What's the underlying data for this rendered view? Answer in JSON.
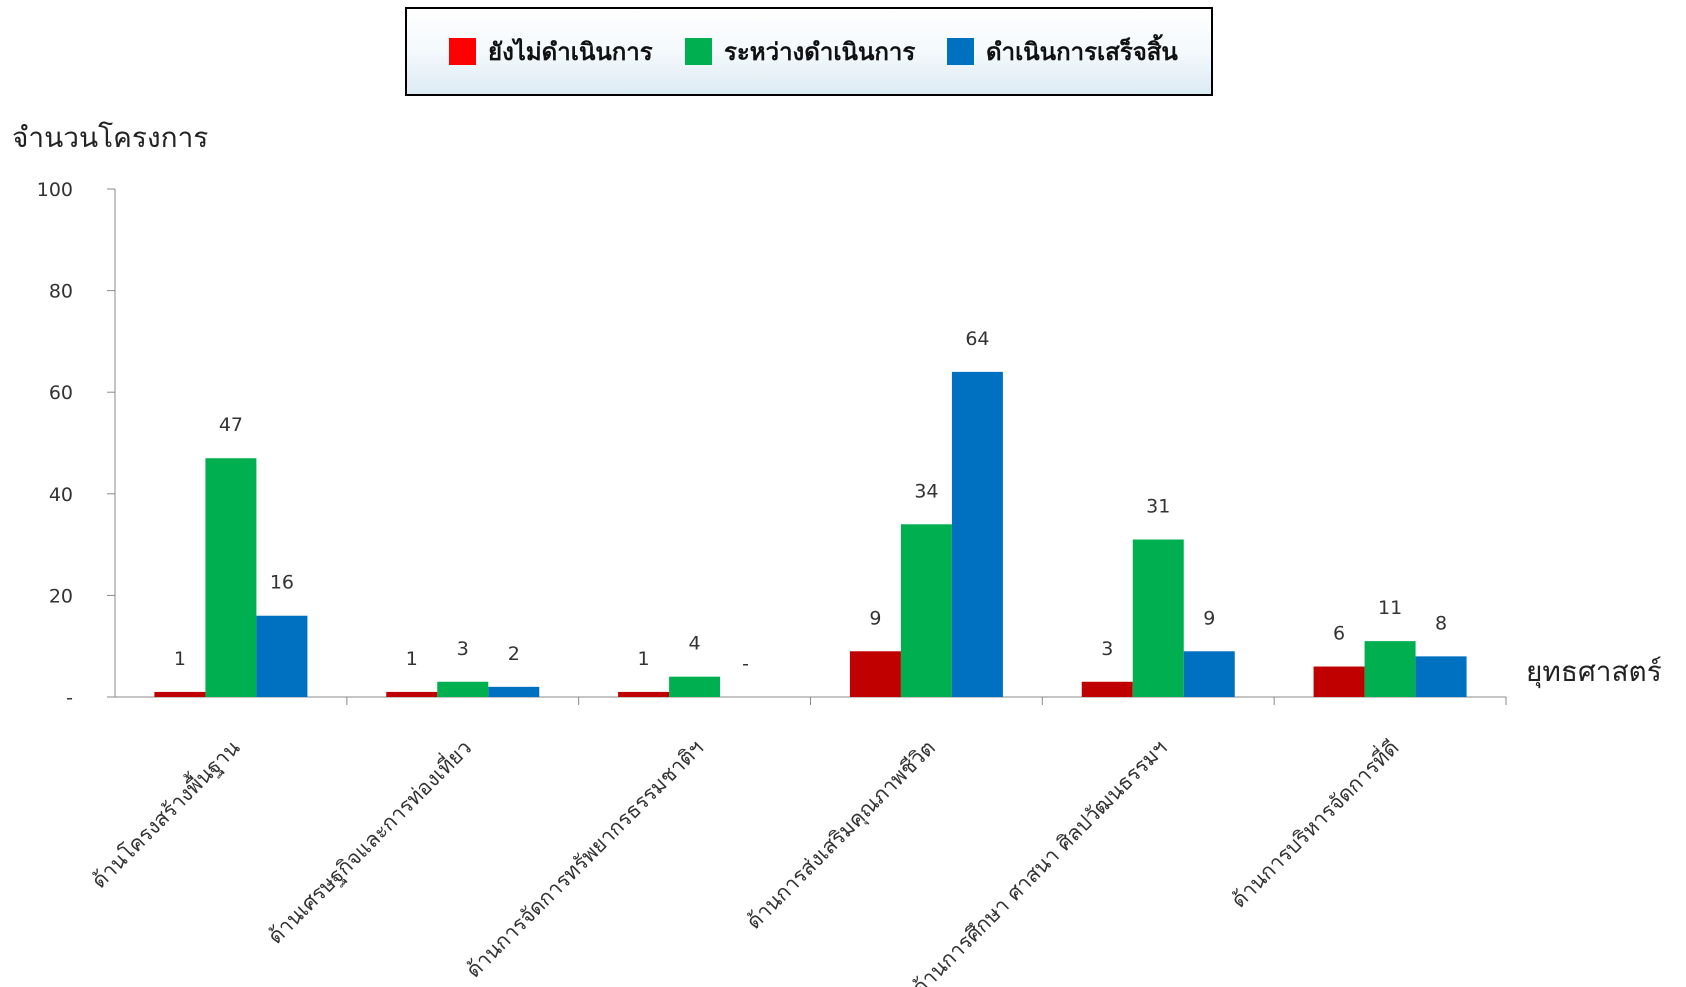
{
  "chart_data": {
    "type": "bar",
    "xlabel": "ยุทธศาสตร์",
    "ylabel": "จำนวนโครงการ",
    "ylim": [
      0,
      100
    ],
    "yticks": [
      "-",
      "20",
      "40",
      "60",
      "80",
      "100"
    ],
    "legend_position": "top",
    "grid": false,
    "categories": [
      "ด้านโครงสร้างพื้นฐาน",
      "ด้านเศรษฐกิจและการท่องเที่ยว",
      "ด้านการจัดการทรัพยากรธรรมชาติฯ",
      "ด้านการส่งเสริมคุณภาพชีวิต",
      "ด้านการศึกษา ศาสนา ศิลปวัฒนธรรมฯ",
      "ด้านการบริหารจัดการที่ดี"
    ],
    "series": [
      {
        "name": "ยังไม่ดำเนินการ",
        "color": "#c00000",
        "legend_color": "#ff0000",
        "values": [
          1,
          1,
          1,
          9,
          3,
          6
        ],
        "labels": [
          "1",
          "1",
          "1",
          "9",
          "3",
          "6"
        ]
      },
      {
        "name": "ระหว่างดำเนินการ",
        "color": "#00b050",
        "legend_color": "#00b050",
        "values": [
          47,
          3,
          4,
          34,
          31,
          11
        ],
        "labels": [
          "47",
          "3",
          "4",
          "34",
          "31",
          "11"
        ]
      },
      {
        "name": "ดำเนินการเสร็จสิ้น",
        "color": "#0070c0",
        "legend_color": "#0070c0",
        "values": [
          16,
          2,
          0,
          64,
          9,
          8
        ],
        "labels": [
          "16",
          "2",
          "-",
          "64",
          "9",
          "8"
        ]
      }
    ]
  }
}
